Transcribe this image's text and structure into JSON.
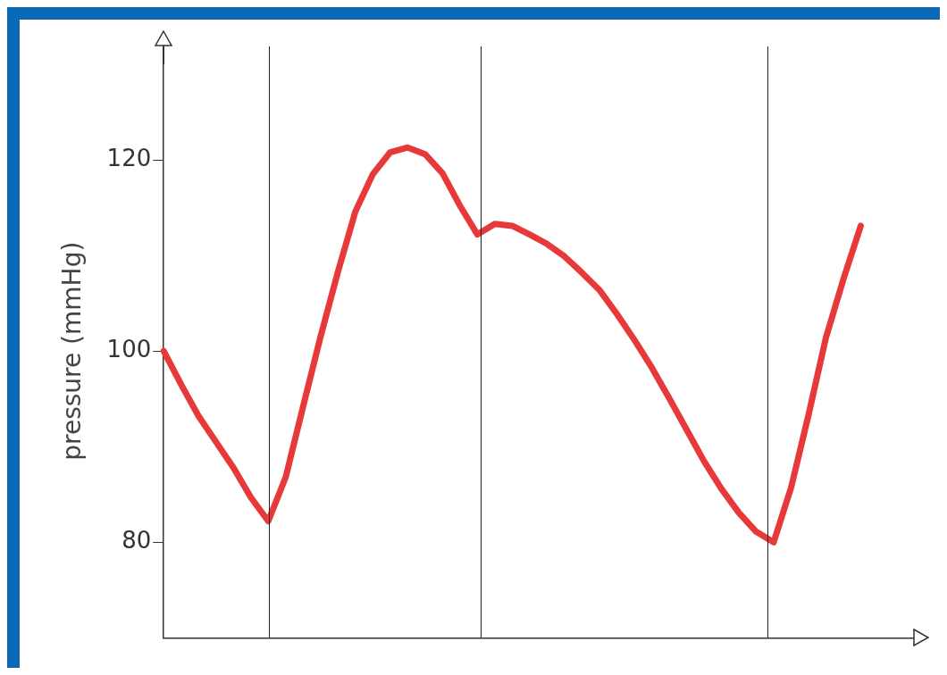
{
  "chart_data": {
    "type": "line",
    "ylabel": "pressure (mmHg)",
    "categories": [
      null,
      null,
      null,
      null,
      null,
      null,
      null,
      null,
      null,
      null,
      null,
      null,
      null,
      null,
      null,
      null,
      null,
      null,
      null,
      null,
      null,
      null,
      null,
      null,
      null,
      null,
      null,
      null,
      null,
      null,
      null,
      null,
      null,
      null,
      null,
      null,
      null,
      null,
      null,
      null,
      null,
      null,
      null,
      null
    ],
    "series": [
      {
        "color": "#e8393a",
        "values": [
          100,
          96.5,
          93.2,
          90.5,
          87.8,
          84.7,
          82.2,
          86.8,
          94.2,
          101.5,
          108.3,
          114.6,
          118.5,
          120.8,
          121.3,
          120.6,
          118.6,
          115.2,
          112.2,
          113.3,
          113.1,
          112.2,
          111.2,
          109.9,
          108.2,
          106.4,
          103.9,
          101.2,
          98.3,
          95.1,
          91.8,
          88.5,
          85.6,
          83.1,
          81.1,
          80.0,
          85.7,
          93.3,
          101.4,
          107.5,
          113.1,
          null,
          null,
          null
        ]
      }
    ],
    "ylim": [
      70,
      130
    ],
    "yticks": [
      80,
      100,
      120
    ],
    "tick_labels": "y",
    "grid": false,
    "legend": false,
    "marker": "none",
    "line_style": "solid"
  }
}
